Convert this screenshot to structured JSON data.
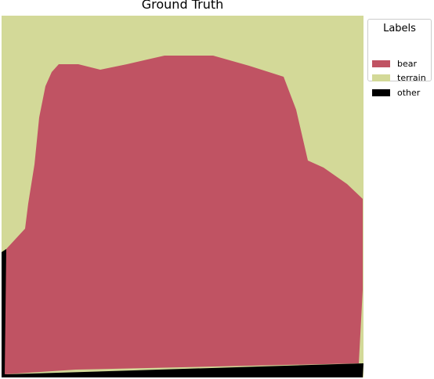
{
  "title": "Ground Truth",
  "legend": {
    "title": "Labels",
    "items": [
      {
        "label": "bear",
        "color": "#c05363"
      },
      {
        "label": "terrain",
        "color": "#d3d998"
      },
      {
        "label": "other",
        "color": "#000000"
      }
    ]
  },
  "colors": {
    "bear": "#c05363",
    "terrain": "#d3d998",
    "other": "#000000"
  }
}
